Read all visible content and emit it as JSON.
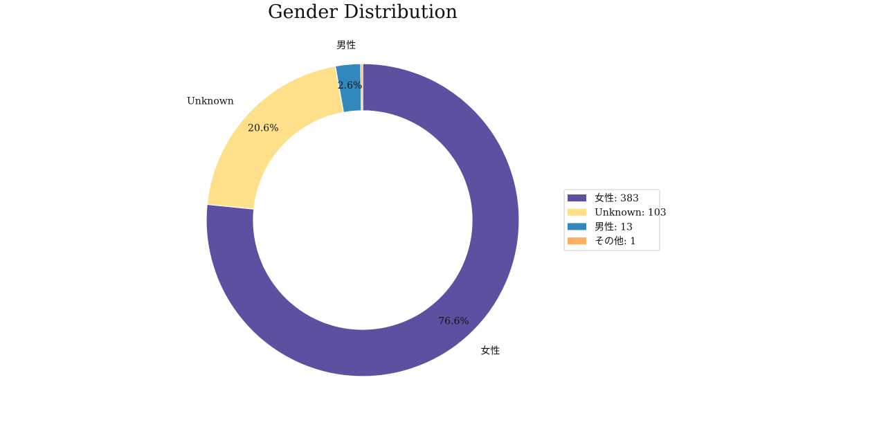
{
  "chart_data": {
    "type": "pie",
    "style": "donut",
    "title": "Gender Distribution",
    "start": "top",
    "direction": "clockwise",
    "legend_position": "right",
    "slices": [
      {
        "label": "女性",
        "value": 383,
        "percent_label": "76.6%",
        "color": "#5e50a1",
        "legend": "女性: 383"
      },
      {
        "label": "Unknown",
        "value": 103,
        "percent_label": "20.6%",
        "color": "#fee08b",
        "legend": "Unknown: 103"
      },
      {
        "label": "男性",
        "value": 13,
        "percent_label": "2.6%",
        "color": "#3288bd",
        "legend": "男性: 13"
      },
      {
        "label": "その他",
        "value": 1,
        "percent_label": "",
        "color": "#fdae61",
        "legend": "その他: 1"
      }
    ]
  }
}
